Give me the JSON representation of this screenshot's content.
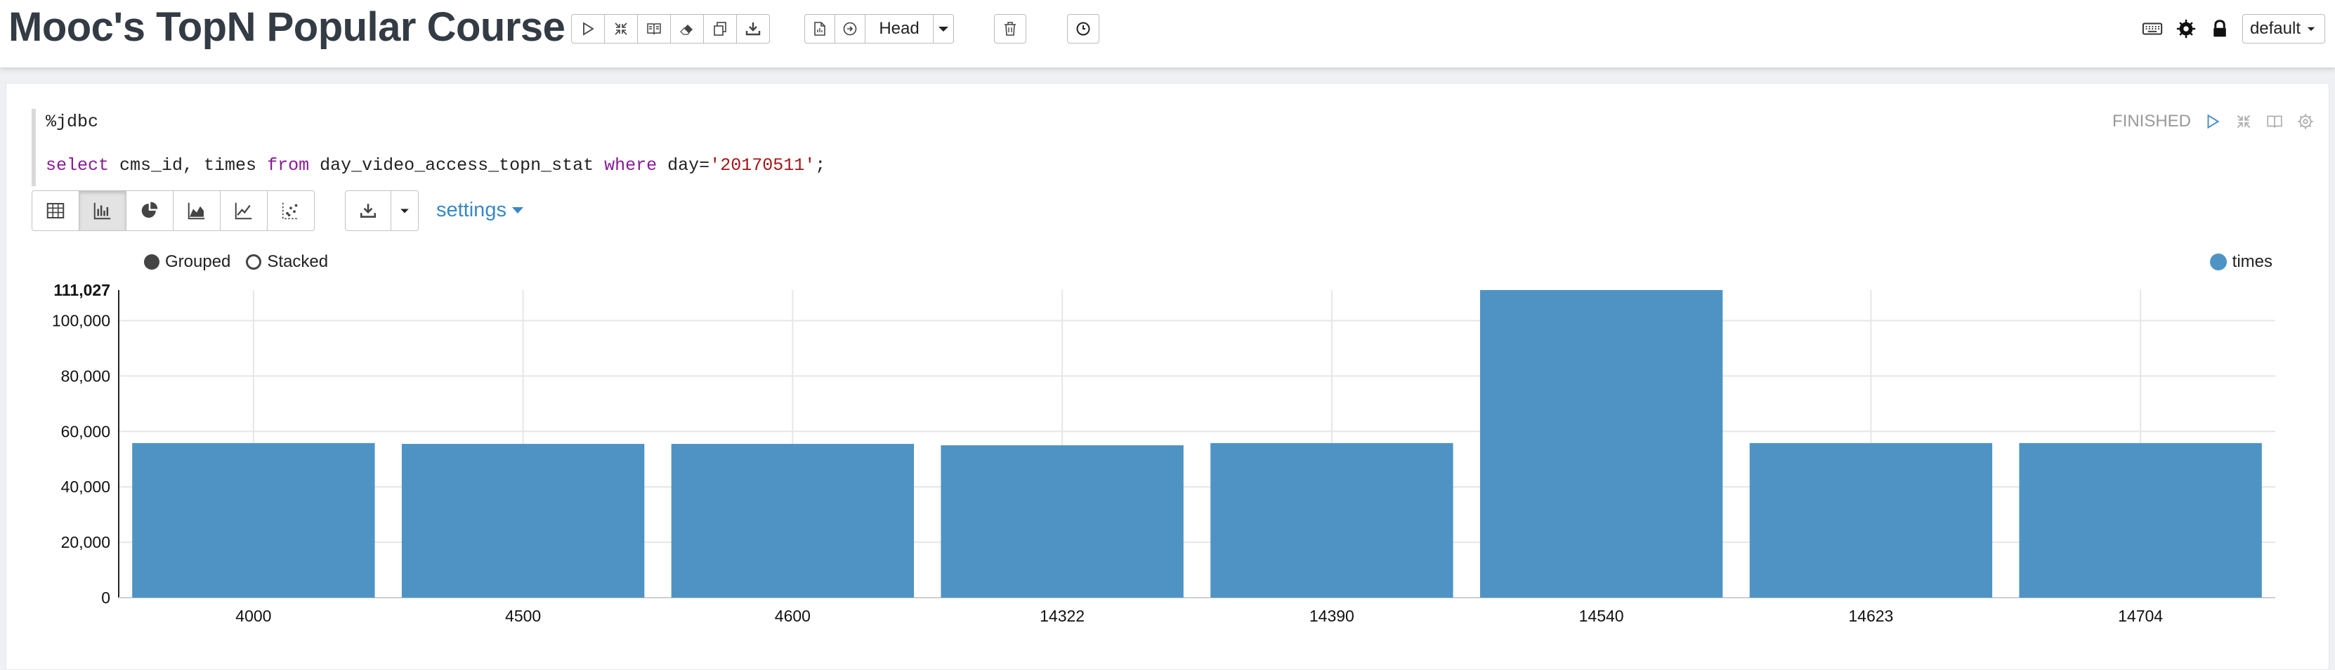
{
  "header": {
    "title": "Mooc's TopN Popular Course",
    "head_label": "Head",
    "default_label": "default",
    "icons": [
      "play-icon",
      "collapse-icon",
      "book-icon",
      "eraser-icon",
      "copy-icon",
      "download-icon",
      "file-icon",
      "circle-arrow-icon",
      "caret-down-icon",
      "trash-icon",
      "clock-icon",
      "keyboard-icon",
      "gear-icon",
      "lock-icon"
    ]
  },
  "paragraph": {
    "interpreter": "%jdbc",
    "query": {
      "kw_select": "select",
      "cols": " cms_id, times ",
      "kw_from": "from",
      "table": " day_video_access_topn_stat ",
      "kw_where": "where",
      "cond": " day=",
      "value": "'20170511'",
      "end": ";"
    },
    "status": "FINISHED",
    "settings_label": "settings",
    "grouped_label": "Grouped",
    "stacked_label": "Stacked",
    "selected_mode": "Grouped",
    "active_view": "bar-chart"
  },
  "chart_data": {
    "type": "bar",
    "categories": [
      "4000",
      "4500",
      "4600",
      "14322",
      "14390",
      "14540",
      "14623",
      "14704"
    ],
    "series": [
      {
        "name": "times",
        "values": [
          55800,
          55500,
          55500,
          55000,
          55800,
          111027,
          55800,
          55800
        ],
        "color": "#4f93c4"
      }
    ],
    "ylim": [
      0,
      111027
    ],
    "yticks": [
      0,
      20000,
      40000,
      60000,
      80000,
      100000
    ],
    "ytick_labels": [
      "0",
      "20,000",
      "40,000",
      "60,000",
      "80,000",
      "100,000"
    ],
    "ymax_label": "111,027",
    "grid": true,
    "legend": "top-right"
  }
}
